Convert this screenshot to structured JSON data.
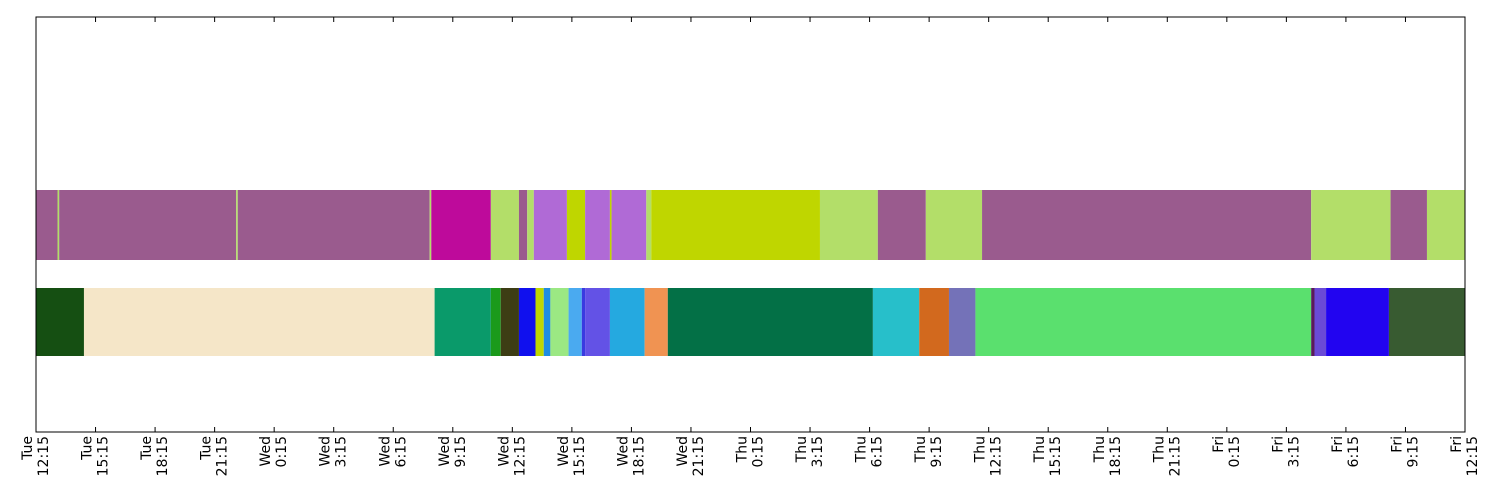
{
  "chart_data": {
    "type": "timeline",
    "title": "",
    "xlabel": "",
    "ylabel": "",
    "grid": false,
    "xlim": [
      "Tue 12:15",
      "Fri 12:15"
    ],
    "x_ticks": [
      {
        "day": "Tue",
        "time": "12:15"
      },
      {
        "day": "Tue",
        "time": "15:15"
      },
      {
        "day": "Tue",
        "time": "18:15"
      },
      {
        "day": "Tue",
        "time": "21:15"
      },
      {
        "day": "Wed",
        "time": "0:15"
      },
      {
        "day": "Wed",
        "time": "3:15"
      },
      {
        "day": "Wed",
        "time": "6:15"
      },
      {
        "day": "Wed",
        "time": "9:15"
      },
      {
        "day": "Wed",
        "time": "12:15"
      },
      {
        "day": "Wed",
        "time": "15:15"
      },
      {
        "day": "Wed",
        "time": "18:15"
      },
      {
        "day": "Wed",
        "time": "21:15"
      },
      {
        "day": "Thu",
        "time": "0:15"
      },
      {
        "day": "Thu",
        "time": "3:15"
      },
      {
        "day": "Thu",
        "time": "6:15"
      },
      {
        "day": "Thu",
        "time": "9:15"
      },
      {
        "day": "Thu",
        "time": "12:15"
      },
      {
        "day": "Thu",
        "time": "15:15"
      },
      {
        "day": "Thu",
        "time": "18:15"
      },
      {
        "day": "Thu",
        "time": "21:15"
      },
      {
        "day": "Fri",
        "time": "0:15"
      },
      {
        "day": "Fri",
        "time": "3:15"
      },
      {
        "day": "Fri",
        "time": "6:15"
      },
      {
        "day": "Fri",
        "time": "9:15"
      },
      {
        "day": "Fri",
        "time": "12:15"
      }
    ],
    "rows": [
      {
        "segments": [
          {
            "start": "Tue 12:15",
            "end": "Tue 13:20",
            "color": "#9a5b8e"
          },
          {
            "start": "Tue 13:20",
            "end": "Tue 13:25",
            "color": "#b3de69"
          },
          {
            "start": "Tue 13:25",
            "end": "Tue 22:20",
            "color": "#9a5b8e"
          },
          {
            "start": "Tue 22:20",
            "end": "Tue 22:25",
            "color": "#b3de69"
          },
          {
            "start": "Tue 22:25",
            "end": "Wed 8:05",
            "color": "#9a5b8e"
          },
          {
            "start": "Wed 8:05",
            "end": "Wed 8:10",
            "color": "#b3de69"
          },
          {
            "start": "Wed 8:10",
            "end": "Wed 11:10",
            "color": "#be0a9b"
          },
          {
            "start": "Wed 11:10",
            "end": "Wed 12:35",
            "color": "#b3de69"
          },
          {
            "start": "Wed 12:35",
            "end": "Wed 13:00",
            "color": "#9a5b8e"
          },
          {
            "start": "Wed 13:00",
            "end": "Wed 13:20",
            "color": "#b3de69"
          },
          {
            "start": "Wed 13:20",
            "end": "Wed 15:00",
            "color": "#b06ad6"
          },
          {
            "start": "Wed 15:00",
            "end": "Wed 15:55",
            "color": "#bfd600"
          },
          {
            "start": "Wed 15:55",
            "end": "Wed 17:10",
            "color": "#b06ad6"
          },
          {
            "start": "Wed 17:10",
            "end": "Wed 17:15",
            "color": "#bfd600"
          },
          {
            "start": "Wed 17:15",
            "end": "Wed 19:00",
            "color": "#b06ad6"
          },
          {
            "start": "Wed 19:00",
            "end": "Wed 19:15",
            "color": "#b3de69"
          },
          {
            "start": "Wed 19:15",
            "end": "Thu 3:45",
            "color": "#bfd600"
          },
          {
            "start": "Thu 3:45",
            "end": "Thu 6:40",
            "color": "#b3de69"
          },
          {
            "start": "Thu 6:40",
            "end": "Thu 9:05",
            "color": "#9a5b8e"
          },
          {
            "start": "Thu 9:05",
            "end": "Thu 11:55",
            "color": "#b3de69"
          },
          {
            "start": "Thu 11:55",
            "end": "Fri 4:30",
            "color": "#9a5b8e"
          },
          {
            "start": "Fri 4:30",
            "end": "Fri 8:30",
            "color": "#b3de69"
          },
          {
            "start": "Fri 8:30",
            "end": "Fri 10:20",
            "color": "#9a5b8e"
          },
          {
            "start": "Fri 10:20",
            "end": "Fri 12:15",
            "color": "#b3de69"
          }
        ]
      },
      {
        "segments": [
          {
            "start": "Tue 12:15",
            "end": "Tue 14:40",
            "color": "#154f12"
          },
          {
            "start": "Tue 14:40",
            "end": "Wed 8:20",
            "color": "#f5e6c8"
          },
          {
            "start": "Wed 8:20",
            "end": "Wed 11:10",
            "color": "#0a9a6a"
          },
          {
            "start": "Wed 11:10",
            "end": "Wed 11:40",
            "color": "#1b9a1b"
          },
          {
            "start": "Wed 11:40",
            "end": "Wed 12:35",
            "color": "#3d3d14"
          },
          {
            "start": "Wed 12:35",
            "end": "Wed 13:25",
            "color": "#1010ee"
          },
          {
            "start": "Wed 13:25",
            "end": "Wed 13:50",
            "color": "#bfd600"
          },
          {
            "start": "Wed 13:50",
            "end": "Wed 14:10",
            "color": "#1f8de0"
          },
          {
            "start": "Wed 14:10",
            "end": "Wed 15:05",
            "color": "#9be883"
          },
          {
            "start": "Wed 15:05",
            "end": "Wed 15:45",
            "color": "#4aaaf0"
          },
          {
            "start": "Wed 15:45",
            "end": "Wed 15:55",
            "color": "#3a3ae0"
          },
          {
            "start": "Wed 15:55",
            "end": "Wed 17:10",
            "color": "#6352e6"
          },
          {
            "start": "Wed 17:10",
            "end": "Wed 18:55",
            "color": "#25a9e0"
          },
          {
            "start": "Wed 18:55",
            "end": "Wed 20:05",
            "color": "#f09352"
          },
          {
            "start": "Wed 20:05",
            "end": "Thu 6:25",
            "color": "#037046"
          },
          {
            "start": "Thu 6:25",
            "end": "Thu 8:45",
            "color": "#27bfca"
          },
          {
            "start": "Thu 8:45",
            "end": "Thu 10:15",
            "color": "#d2691e"
          },
          {
            "start": "Thu 10:15",
            "end": "Thu 11:35",
            "color": "#7472b8"
          },
          {
            "start": "Thu 11:35",
            "end": "Fri 4:30",
            "color": "#5ae06e"
          },
          {
            "start": "Fri 4:30",
            "end": "Fri 4:40",
            "color": "#5a1a5a"
          },
          {
            "start": "Fri 4:40",
            "end": "Fri 5:15",
            "color": "#6a4ad6"
          },
          {
            "start": "Fri 5:15",
            "end": "Fri 8:25",
            "color": "#2204f0"
          },
          {
            "start": "Fri 8:25",
            "end": "Fri 12:15",
            "color": "#385b31"
          }
        ]
      }
    ]
  }
}
